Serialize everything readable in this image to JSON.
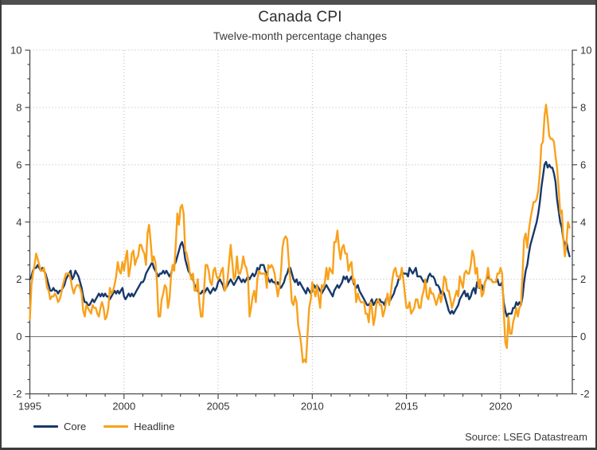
{
  "header": {
    "title": "Canada CPI",
    "subtitle": "Twelve-month percentage changes"
  },
  "source_label": "Source: LSEG Datastream",
  "colors": {
    "core_line": "#17396b",
    "headline_line": "#f9a11b",
    "grid_dotted": "#b5b5b5",
    "zero_line": "#7f7f7f",
    "axis": "#4a4a4a",
    "tick_text": "#333333",
    "frame_bar": "#4f4f4f"
  },
  "chart_data": {
    "type": "line",
    "title": "Canada CPI",
    "subtitle": "Twelve-month percentage changes",
    "frequency": "monthly",
    "x_start_year": 1995,
    "x_axis": {
      "range": [
        1995,
        2023.81
      ],
      "major_ticks": [
        1995,
        2000,
        2005,
        2010,
        2015,
        2020
      ],
      "tick_labels": [
        "1995",
        "2000",
        "2005",
        "2010",
        "2015",
        "2020"
      ],
      "minor_tick_every_years": 1,
      "dotted_vertical_gridlines": [
        2000,
        2005,
        2010,
        2015,
        2020
      ]
    },
    "y_axis": {
      "range": [
        -2,
        10
      ],
      "major_ticks": [
        -2,
        0,
        2,
        4,
        6,
        8,
        10
      ],
      "tick_labels": [
        "-2",
        "0",
        "2",
        "4",
        "6",
        "8",
        "10"
      ],
      "minor_tick_every": 0.5,
      "dotted_gridlines": [
        2,
        4,
        6,
        8,
        10
      ],
      "zero_line_solid": true,
      "dual_axis": true
    },
    "legend_position": "bottom-left",
    "grid": true,
    "series": [
      {
        "name": "Core",
        "color": "#17396b",
        "values": [
          2.0,
          2.1,
          2.3,
          2.4,
          2.4,
          2.5,
          2.4,
          2.3,
          2.4,
          2.3,
          2.2,
          2.0,
          1.8,
          1.6,
          1.6,
          1.7,
          1.6,
          1.6,
          1.5,
          1.6,
          1.6,
          1.7,
          1.8,
          2.0,
          2.1,
          2.2,
          2.3,
          2.0,
          2.1,
          2.3,
          2.2,
          2.1,
          1.9,
          1.7,
          1.4,
          1.2,
          1.2,
          1.1,
          1.1,
          1.2,
          1.3,
          1.2,
          1.3,
          1.4,
          1.5,
          1.4,
          1.5,
          1.4,
          1.5,
          1.4,
          1.4,
          1.3,
          1.4,
          1.5,
          1.6,
          1.5,
          1.6,
          1.5,
          1.6,
          1.7,
          1.4,
          1.3,
          1.4,
          1.5,
          1.4,
          1.5,
          1.4,
          1.5,
          1.6,
          1.7,
          1.8,
          1.9,
          1.9,
          2.0,
          2.2,
          2.3,
          2.4,
          2.5,
          2.6,
          2.4,
          2.3,
          2.2,
          2.1,
          2.2,
          2.2,
          2.3,
          2.2,
          2.3,
          2.2,
          2.1,
          2.2,
          2.4,
          2.5,
          2.6,
          2.8,
          3.0,
          3.2,
          3.3,
          3.1,
          2.7,
          2.5,
          2.3,
          2.2,
          2.1,
          2.0,
          1.8,
          1.7,
          1.6,
          1.5,
          1.5,
          1.6,
          1.5,
          1.6,
          1.7,
          1.6,
          1.5,
          1.6,
          1.7,
          1.6,
          1.7,
          1.9,
          2.0,
          1.9,
          1.8,
          1.6,
          1.7,
          1.8,
          1.9,
          2.0,
          1.9,
          1.8,
          1.9,
          2.0,
          2.1,
          2.0,
          1.9,
          2.0,
          1.9,
          2.0,
          2.1,
          2.0,
          2.1,
          2.2,
          2.1,
          2.2,
          2.4,
          2.3,
          2.5,
          2.5,
          2.5,
          2.3,
          2.2,
          2.0,
          1.9,
          2.0,
          1.9,
          1.9,
          1.8,
          1.9,
          1.8,
          1.7,
          1.8,
          1.9,
          2.1,
          2.2,
          2.4,
          2.4,
          2.2,
          2.0,
          1.9,
          2.0,
          1.8,
          1.9,
          1.8,
          1.7,
          1.6,
          1.5,
          1.7,
          1.6,
          1.5,
          1.6,
          1.8,
          1.7,
          1.8,
          1.7,
          1.6,
          1.5,
          1.6,
          1.7,
          1.8,
          1.7,
          1.6,
          1.5,
          1.4,
          1.6,
          1.7,
          1.8,
          1.7,
          1.8,
          1.9,
          2.1,
          2.0,
          2.1,
          1.9,
          2.0,
          2.1,
          1.9,
          1.8,
          1.7,
          1.8,
          1.6,
          1.5,
          1.4,
          1.3,
          1.2,
          1.1,
          1.1,
          1.2,
          1.3,
          1.1,
          1.2,
          1.3,
          1.2,
          1.3,
          1.2,
          1.2,
          1.1,
          1.3,
          1.4,
          1.2,
          1.3,
          1.4,
          1.5,
          1.7,
          1.8,
          2.0,
          2.1,
          2.3,
          2.2,
          2.2,
          2.2,
          2.1,
          2.4,
          2.3,
          2.2,
          2.3,
          2.4,
          2.1,
          2.1,
          2.1,
          2.0,
          1.9,
          2.0,
          1.9,
          2.1,
          2.2,
          2.1,
          2.1,
          2.0,
          1.8,
          1.8,
          1.7,
          1.5,
          1.6,
          1.5,
          1.3,
          1.1,
          0.9,
          0.8,
          0.9,
          0.8,
          0.9,
          1.0,
          1.1,
          1.3,
          1.4,
          1.5,
          1.6,
          1.4,
          1.5,
          1.3,
          1.4,
          1.6,
          1.7,
          1.5,
          1.9,
          1.7,
          1.7,
          1.8,
          1.6,
          1.9,
          2.0,
          2.1,
          2.0,
          2.0,
          1.9,
          1.9,
          1.9,
          2.0,
          1.8,
          1.8,
          1.9,
          1.2,
          0.9,
          0.7,
          0.8,
          0.8,
          0.8,
          1.0,
          1.0,
          1.2,
          1.1,
          1.2,
          1.1,
          1.4,
          1.9,
          2.3,
          2.5,
          2.9,
          3.2,
          3.4,
          3.6,
          3.8,
          4.0,
          4.3,
          4.7,
          5.2,
          5.6,
          6.0,
          6.1,
          5.9,
          6.0,
          5.9,
          5.9,
          5.7,
          5.4,
          4.8,
          4.4,
          4.0,
          3.8,
          3.4,
          3.2,
          3.3,
          3.0,
          2.8
        ]
      },
      {
        "name": "Headline",
        "color": "#f9a11b",
        "values": [
          0.6,
          1.8,
          2.2,
          2.5,
          2.9,
          2.7,
          2.5,
          2.3,
          2.3,
          2.4,
          2.1,
          1.7,
          1.6,
          1.3,
          1.4,
          1.4,
          1.5,
          1.4,
          1.2,
          1.3,
          1.5,
          1.8,
          2.0,
          2.2,
          2.2,
          2.2,
          2.0,
          1.7,
          1.5,
          1.7,
          1.8,
          1.8,
          1.7,
          1.5,
          0.9,
          0.7,
          1.1,
          1.0,
          0.9,
          0.8,
          1.1,
          1.0,
          1.0,
          0.8,
          0.7,
          1.0,
          1.2,
          1.0,
          0.6,
          0.7,
          1.0,
          1.7,
          1.5,
          1.6,
          1.8,
          2.1,
          2.6,
          2.3,
          2.2,
          2.6,
          2.3,
          2.7,
          3.0,
          2.1,
          2.4,
          2.9,
          3.0,
          2.5,
          2.7,
          2.8,
          3.2,
          3.2,
          3.0,
          2.9,
          2.5,
          3.6,
          3.9,
          3.3,
          2.6,
          2.8,
          2.6,
          1.9,
          0.7,
          0.7,
          1.3,
          1.5,
          1.8,
          1.7,
          1.0,
          1.3,
          2.1,
          2.5,
          2.3,
          3.2,
          4.3,
          3.9,
          4.5,
          4.6,
          4.3,
          3.0,
          2.9,
          2.6,
          2.2,
          2.0,
          2.2,
          1.6,
          1.6,
          2.0,
          1.2,
          0.7,
          0.7,
          1.6,
          2.5,
          2.5,
          2.3,
          1.9,
          1.8,
          2.3,
          2.4,
          2.1,
          2.0,
          2.1,
          2.3,
          2.4,
          1.6,
          1.7,
          2.0,
          2.6,
          3.2,
          2.6,
          2.0,
          2.1,
          2.8,
          2.2,
          2.2,
          2.4,
          2.8,
          2.5,
          2.4,
          2.1,
          0.7,
          1.0,
          1.4,
          1.6,
          1.2,
          2.0,
          2.3,
          2.2,
          2.2,
          2.2,
          2.2,
          1.7,
          2.5,
          2.4,
          2.5,
          2.4,
          2.2,
          1.8,
          1.4,
          1.7,
          2.2,
          3.1,
          3.4,
          3.5,
          3.4,
          2.6,
          2.0,
          1.2,
          1.1,
          1.4,
          1.2,
          0.4,
          0.1,
          -0.3,
          -0.9,
          -0.8,
          -0.9,
          0.1,
          1.0,
          1.3,
          1.9,
          1.6,
          1.4,
          1.8,
          1.4,
          1.0,
          1.8,
          1.7,
          1.9,
          2.4,
          2.0,
          2.4,
          2.3,
          2.2,
          3.3,
          3.3,
          3.7,
          3.1,
          2.7,
          3.1,
          3.2,
          2.9,
          2.9,
          2.3,
          2.5,
          2.6,
          1.9,
          2.0,
          1.2,
          1.5,
          1.3,
          1.2,
          1.2,
          1.2,
          0.8,
          0.8,
          0.5,
          1.2,
          1.0,
          0.4,
          0.7,
          1.2,
          1.3,
          1.1,
          1.1,
          0.7,
          0.9,
          1.2,
          1.5,
          1.1,
          1.5,
          2.0,
          2.3,
          2.4,
          2.1,
          2.1,
          2.0,
          2.4,
          2.0,
          1.5,
          1.0,
          1.0,
          1.2,
          0.8,
          0.9,
          1.0,
          1.3,
          1.3,
          1.0,
          1.0,
          1.4,
          1.6,
          2.0,
          1.4,
          1.3,
          1.7,
          1.5,
          1.5,
          1.3,
          1.1,
          1.3,
          1.5,
          1.2,
          1.5,
          2.1,
          2.0,
          1.6,
          1.6,
          1.3,
          1.0,
          1.2,
          1.4,
          1.6,
          1.4,
          2.1,
          1.9,
          1.7,
          2.2,
          2.3,
          2.2,
          2.2,
          2.5,
          3.0,
          2.8,
          2.2,
          2.4,
          1.7,
          2.0,
          1.4,
          1.5,
          1.9,
          2.0,
          2.4,
          2.0,
          2.0,
          1.9,
          1.9,
          1.9,
          2.2,
          2.2,
          2.4,
          2.2,
          0.9,
          -0.2,
          -0.4,
          0.7,
          0.1,
          0.1,
          0.5,
          0.7,
          1.0,
          0.7,
          1.0,
          1.1,
          2.2,
          3.4,
          3.6,
          3.1,
          3.7,
          4.1,
          4.4,
          4.7,
          4.7,
          4.8,
          5.1,
          5.7,
          6.7,
          6.8,
          7.7,
          8.1,
          7.6,
          7.0,
          6.9,
          6.9,
          6.8,
          6.3,
          5.9,
          5.2,
          4.3,
          4.4,
          3.4,
          2.8,
          3.3,
          4.0,
          3.8
        ]
      }
    ]
  },
  "legend": [
    {
      "label": "Core"
    },
    {
      "label": "Headline"
    }
  ]
}
